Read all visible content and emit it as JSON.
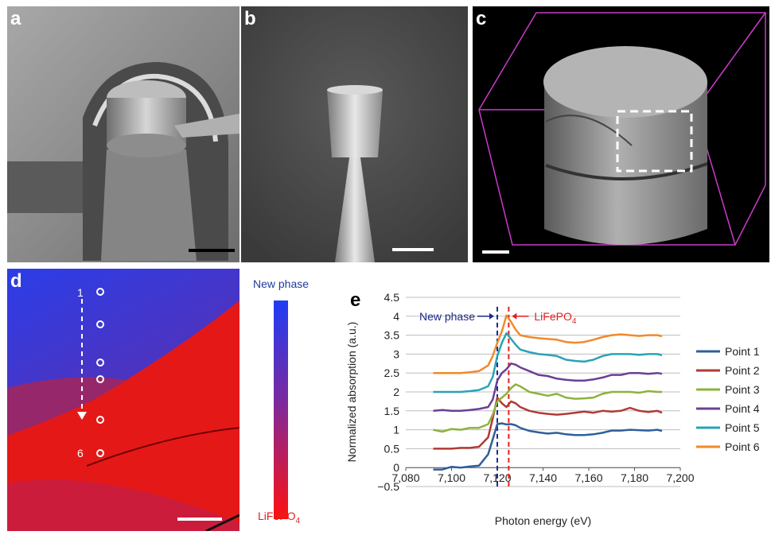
{
  "panels": {
    "a": {
      "letter": "a"
    },
    "b": {
      "letter": "b"
    },
    "c": {
      "letter": "c"
    },
    "d": {
      "letter": "d",
      "point_top": "1",
      "point_bottom": "6"
    },
    "e": {
      "letter": "e"
    }
  },
  "colorbar": {
    "top_label": "New phase",
    "bottom_label": "LiFePO",
    "bottom_sub": "4",
    "top_color": "#1e3cf5",
    "bottom_color": "#ff1010"
  },
  "annotations": {
    "new_phase": "New phase",
    "lifepo": "LiFePO",
    "lifepo_sub": "4",
    "new_phase_color": "#1c2a8c",
    "lifepo_color": "#e0201f"
  },
  "chart_data": {
    "type": "line",
    "xlabel": "Photon energy (eV)",
    "ylabel": "Normalized absorption (a.u.)",
    "xlim": [
      7080,
      7200
    ],
    "ylim": [
      -0.5,
      4.5
    ],
    "xticks": [
      "7,080",
      "7,100",
      "7,120",
      "7,140",
      "7,160",
      "7,180",
      "7,200"
    ],
    "xtick_values": [
      7080,
      7100,
      7120,
      7140,
      7160,
      7180,
      7200
    ],
    "yticks": [
      "−0.5",
      "0",
      "0.5",
      "1",
      "1.5",
      "2",
      "2.5",
      "3",
      "3.5",
      "4",
      "4.5"
    ],
    "ytick_values": [
      -0.5,
      0,
      0.5,
      1,
      1.5,
      2,
      2.5,
      3,
      3.5,
      4,
      4.5
    ],
    "grid": "horizontal",
    "legend_position": "right",
    "vlines": [
      {
        "x": 7120,
        "color": "#1c2a8c"
      },
      {
        "x": 7125,
        "color": "#e0201f"
      }
    ],
    "x": [
      7092,
      7096,
      7100,
      7104,
      7108,
      7112,
      7116,
      7118,
      7120,
      7122,
      7124,
      7126,
      7128,
      7130,
      7134,
      7138,
      7142,
      7146,
      7150,
      7154,
      7158,
      7162,
      7166,
      7170,
      7174,
      7178,
      7182,
      7186,
      7190,
      7192
    ],
    "series": [
      {
        "name": "Point 1",
        "color": "#2f5f9a",
        "values": [
          -0.05,
          -0.05,
          0.02,
          0.0,
          0.03,
          0.05,
          0.35,
          0.75,
          1.15,
          1.17,
          1.14,
          1.15,
          1.12,
          1.05,
          0.97,
          0.93,
          0.9,
          0.92,
          0.88,
          0.86,
          0.86,
          0.88,
          0.92,
          0.98,
          0.98,
          1.0,
          0.99,
          0.98,
          1.0,
          0.97
        ]
      },
      {
        "name": "Point 2",
        "color": "#b23a36",
        "values": [
          0.5,
          0.5,
          0.5,
          0.52,
          0.52,
          0.55,
          0.8,
          1.3,
          1.85,
          1.7,
          1.6,
          1.75,
          1.7,
          1.6,
          1.5,
          1.45,
          1.42,
          1.4,
          1.42,
          1.45,
          1.48,
          1.45,
          1.5,
          1.48,
          1.5,
          1.58,
          1.5,
          1.47,
          1.5,
          1.45
        ]
      },
      {
        "name": "Point 3",
        "color": "#8cb33c",
        "values": [
          1.0,
          0.95,
          1.02,
          1.0,
          1.05,
          1.05,
          1.15,
          1.4,
          1.75,
          1.85,
          1.95,
          2.1,
          2.2,
          2.15,
          2.0,
          1.95,
          1.9,
          1.95,
          1.85,
          1.82,
          1.83,
          1.85,
          1.95,
          2.0,
          2.0,
          2.0,
          1.98,
          2.02,
          2.0,
          2.0
        ]
      },
      {
        "name": "Point 4",
        "color": "#6b3f94",
        "values": [
          1.5,
          1.52,
          1.5,
          1.5,
          1.52,
          1.55,
          1.6,
          1.8,
          2.3,
          2.5,
          2.6,
          2.75,
          2.72,
          2.65,
          2.55,
          2.45,
          2.42,
          2.35,
          2.32,
          2.3,
          2.3,
          2.33,
          2.38,
          2.45,
          2.45,
          2.5,
          2.5,
          2.48,
          2.5,
          2.48
        ]
      },
      {
        "name": "Point 5",
        "color": "#2aa3b5",
        "values": [
          2.0,
          2.0,
          2.0,
          2.0,
          2.02,
          2.05,
          2.15,
          2.4,
          2.95,
          3.3,
          3.55,
          3.4,
          3.25,
          3.12,
          3.05,
          3.0,
          2.98,
          2.95,
          2.85,
          2.82,
          2.8,
          2.85,
          2.95,
          3.0,
          3.0,
          3.0,
          2.98,
          3.0,
          3.0,
          2.97
        ]
      },
      {
        "name": "Point 6",
        "color": "#f08a2a",
        "values": [
          2.5,
          2.5,
          2.5,
          2.5,
          2.52,
          2.55,
          2.7,
          2.95,
          3.3,
          3.6,
          4.02,
          3.85,
          3.65,
          3.5,
          3.45,
          3.42,
          3.4,
          3.38,
          3.32,
          3.3,
          3.32,
          3.38,
          3.45,
          3.5,
          3.52,
          3.5,
          3.48,
          3.5,
          3.5,
          3.47
        ]
      }
    ]
  }
}
